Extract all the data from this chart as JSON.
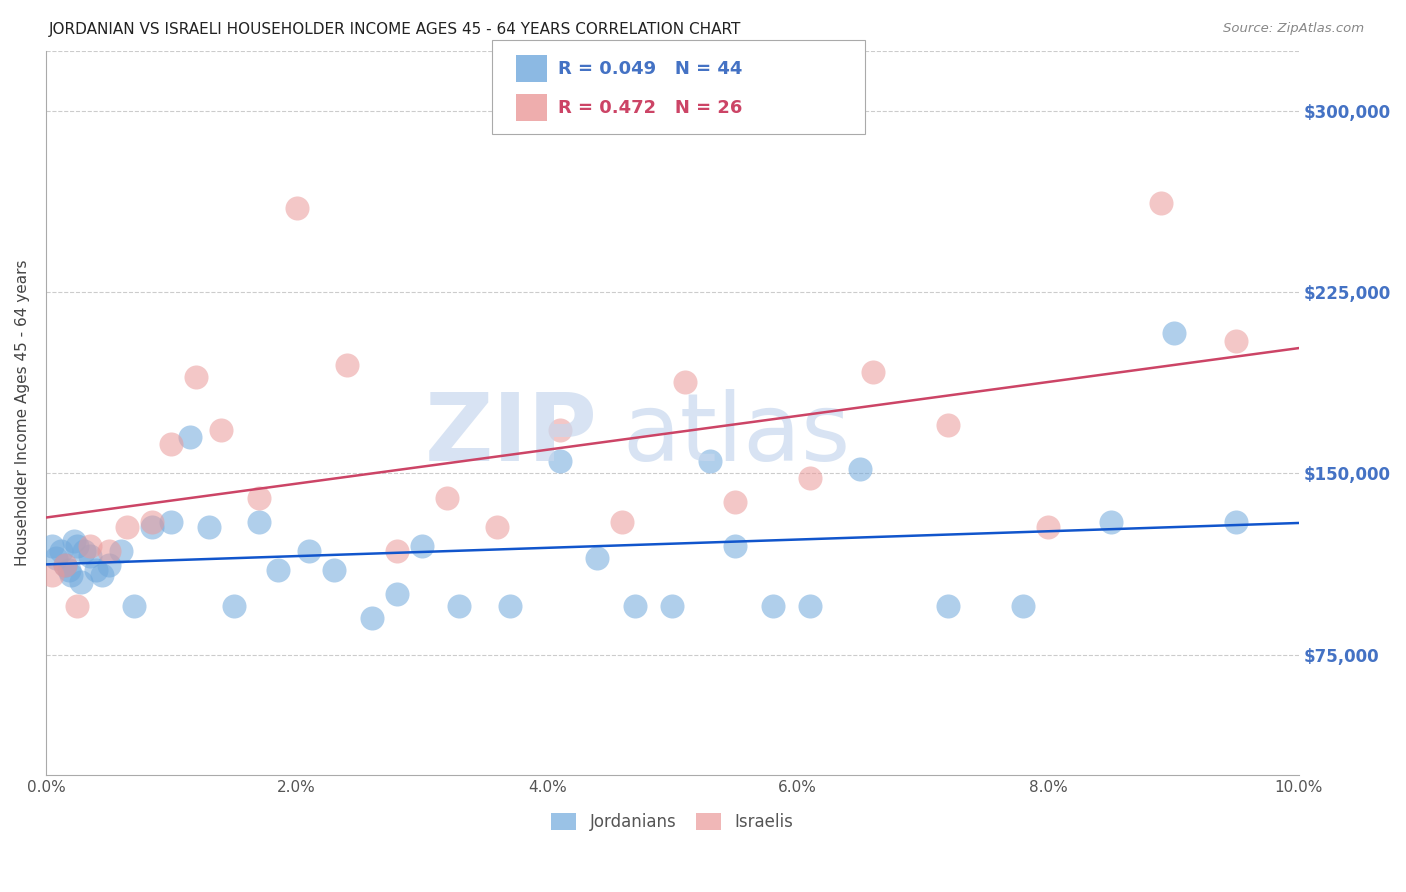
{
  "title": "JORDANIAN VS ISRAELI HOUSEHOLDER INCOME AGES 45 - 64 YEARS CORRELATION CHART",
  "source": "Source: ZipAtlas.com",
  "ylabel": "Householder Income Ages 45 - 64 years",
  "xlabel_ticks": [
    "0.0%",
    "2.0%",
    "4.0%",
    "6.0%",
    "8.0%",
    "10.0%"
  ],
  "ytick_labels": [
    "$75,000",
    "$150,000",
    "$225,000",
    "$300,000"
  ],
  "ytick_vals": [
    75000,
    150000,
    225000,
    300000
  ],
  "xlim": [
    0.0,
    10.0
  ],
  "ylim": [
    25000,
    325000
  ],
  "r_jordanian": 0.049,
  "n_jordanian": 44,
  "r_israeli": 0.472,
  "n_israeli": 26,
  "jordanian_color": "#6fa8dc",
  "israeli_color": "#ea9999",
  "trend_jordanian_color": "#1155cc",
  "trend_israeli_color": "#cc4466",
  "watermark_color": "#c8d8ee",
  "jordanians_x": [
    0.05,
    0.08,
    0.12,
    0.15,
    0.18,
    0.2,
    0.22,
    0.25,
    0.28,
    0.3,
    0.35,
    0.4,
    0.45,
    0.5,
    0.6,
    0.7,
    0.85,
    1.0,
    1.15,
    1.3,
    1.5,
    1.7,
    1.85,
    2.1,
    2.3,
    2.6,
    2.8,
    3.0,
    3.3,
    3.7,
    4.1,
    4.4,
    4.7,
    5.0,
    5.3,
    5.5,
    5.8,
    6.1,
    6.5,
    7.2,
    7.8,
    8.5,
    9.0,
    9.5
  ],
  "jordanians_y": [
    120000,
    115000,
    118000,
    112000,
    110000,
    108000,
    122000,
    120000,
    105000,
    118000,
    116000,
    110000,
    108000,
    112000,
    118000,
    95000,
    128000,
    130000,
    165000,
    128000,
    95000,
    130000,
    110000,
    118000,
    110000,
    90000,
    100000,
    120000,
    95000,
    95000,
    155000,
    115000,
    95000,
    95000,
    155000,
    120000,
    95000,
    95000,
    152000,
    95000,
    95000,
    130000,
    208000,
    130000
  ],
  "israelis_x": [
    0.05,
    0.15,
    0.25,
    0.35,
    0.5,
    0.65,
    0.85,
    1.0,
    1.2,
    1.4,
    1.7,
    2.0,
    2.4,
    2.8,
    3.2,
    3.6,
    4.1,
    4.6,
    5.1,
    5.5,
    6.1,
    6.6,
    7.2,
    8.0,
    8.9,
    9.5
  ],
  "israelis_y": [
    108000,
    112000,
    95000,
    120000,
    118000,
    128000,
    130000,
    162000,
    190000,
    168000,
    140000,
    260000,
    195000,
    118000,
    140000,
    128000,
    168000,
    130000,
    188000,
    138000,
    148000,
    192000,
    170000,
    128000,
    262000,
    205000
  ]
}
